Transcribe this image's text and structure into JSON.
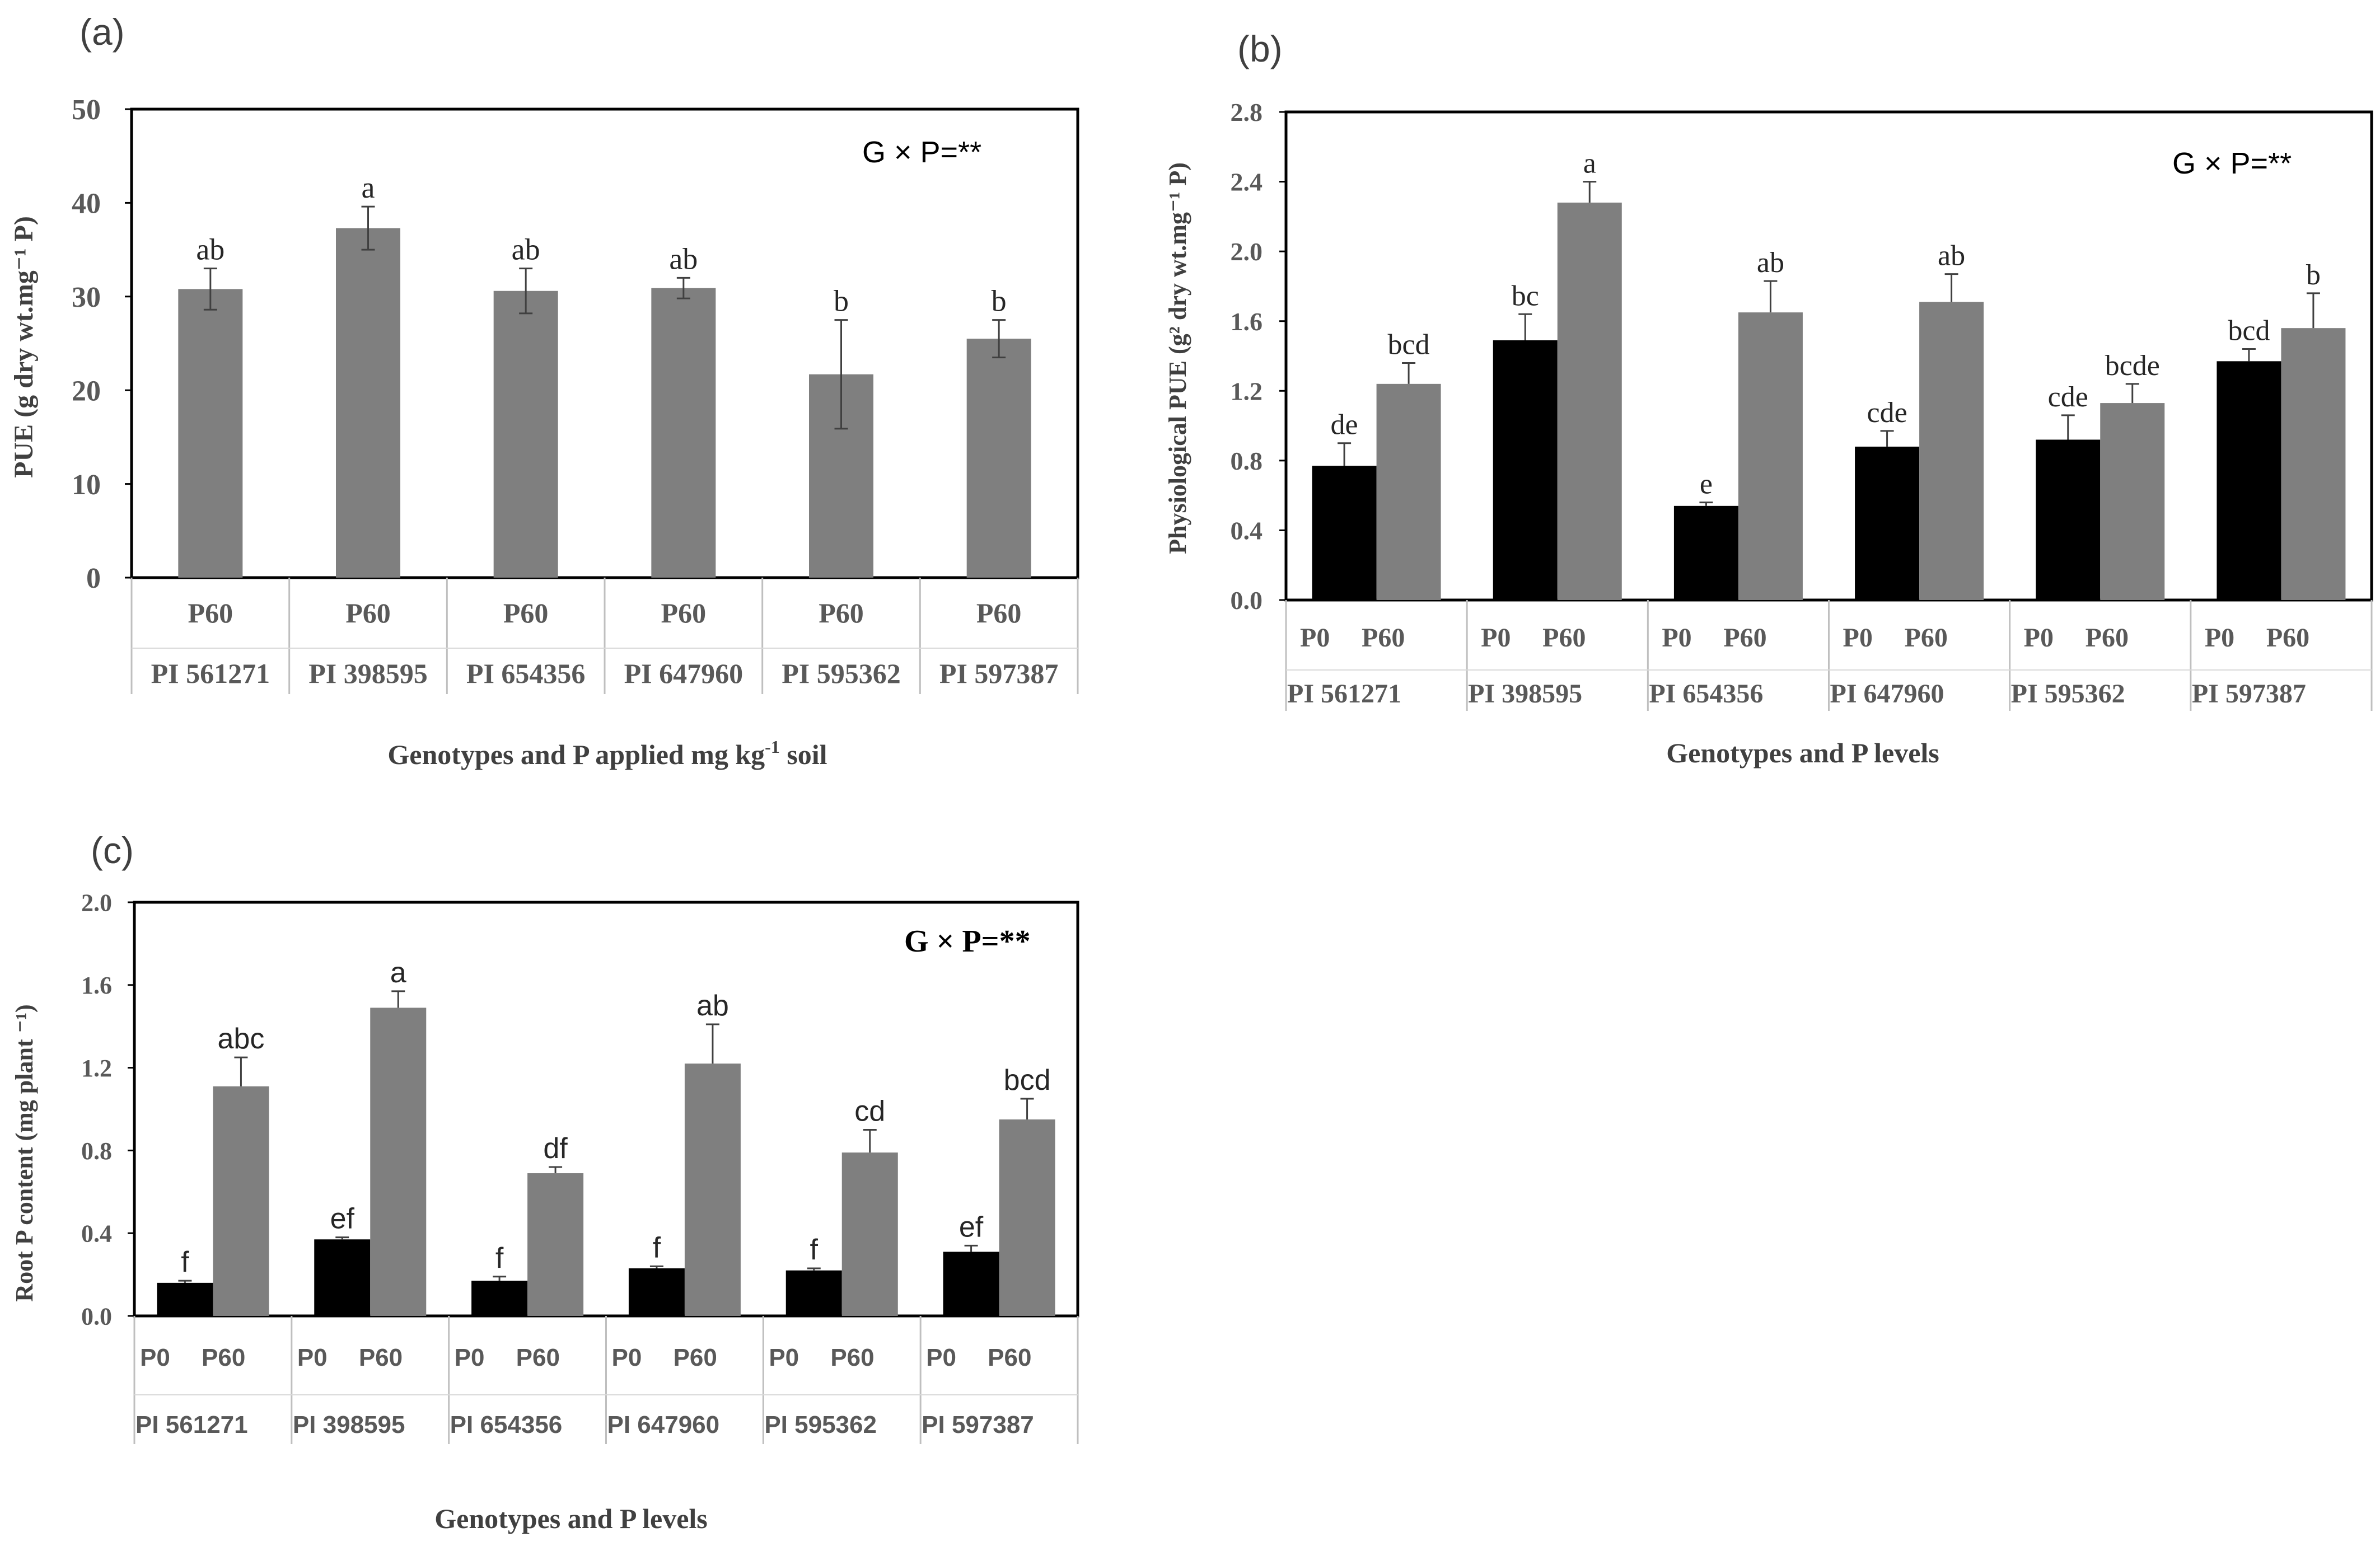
{
  "chart_data": [
    {
      "panel": "(a)",
      "type": "bar",
      "annotation": "G × P=**",
      "ylabel": "PUE (g dry wt.mg⁻¹ P)",
      "xlabel_main": "Genotypes and P applied  mg kg",
      "xlabel_sup": "-1",
      "xlabel_tail": " soil",
      "ylim": [
        0,
        50
      ],
      "yticks": [
        "0",
        "10",
        "20",
        "30",
        "40",
        "50"
      ],
      "genotypes": [
        "PI 561271",
        "PI 398595",
        "PI 654356",
        "PI 647960",
        "PI 595362",
        "PI 597387"
      ],
      "levels": [
        "P60"
      ],
      "colors": [
        "#7f7f7f"
      ],
      "series": [
        {
          "name": "P60",
          "values": [
            30.8,
            37.3,
            30.6,
            30.9,
            21.7,
            25.5
          ],
          "errors": [
            2.2,
            2.3,
            2.4,
            1.1,
            5.8,
            2.0
          ],
          "letters": [
            "ab",
            "a",
            "ab",
            "ab",
            "b",
            "b"
          ]
        }
      ]
    },
    {
      "panel": "(b)",
      "type": "bar",
      "annotation": "G × P=**",
      "ylabel": "Physiological PUE (g² dry wt.mg⁻¹ P)",
      "xlabel": "Genotypes and P levels",
      "ylim": [
        0,
        2.8
      ],
      "yticks": [
        "0.0",
        "0.4",
        "0.8",
        "1.2",
        "1.6",
        "2.0",
        "2.4",
        "2.8"
      ],
      "genotypes": [
        "PI 561271",
        "PI 398595",
        "PI 654356",
        "PI 647960",
        "PI 595362",
        "PI 597387"
      ],
      "levels": [
        "P0",
        "P60"
      ],
      "colors": [
        "#000000",
        "#7f7f7f"
      ],
      "series": [
        {
          "name": "P0",
          "values": [
            0.77,
            1.49,
            0.54,
            0.88,
            0.92,
            1.37
          ],
          "errors": [
            0.13,
            0.15,
            0.02,
            0.09,
            0.14,
            0.07
          ],
          "letters": [
            "de",
            "bc",
            "e",
            "cde",
            "cde",
            "bcd"
          ]
        },
        {
          "name": "P60",
          "values": [
            1.24,
            2.28,
            1.65,
            1.71,
            1.13,
            1.56
          ],
          "errors": [
            0.12,
            0.12,
            0.18,
            0.16,
            0.11,
            0.2
          ],
          "letters": [
            "bcd",
            "a",
            "ab",
            "ab",
            "bcde",
            "b"
          ]
        }
      ]
    },
    {
      "panel": "(c)",
      "type": "bar",
      "annotation": "G × P=**",
      "ylabel": "Root P content (mg plant ⁻¹)",
      "xlabel": "Genotypes and P levels",
      "ylim": [
        0,
        2.0
      ],
      "yticks": [
        "0.0",
        "0.4",
        "0.8",
        "1.2",
        "1.6",
        "2.0"
      ],
      "genotypes": [
        "PI 561271",
        "PI 398595",
        "PI 654356",
        "PI 647960",
        "PI 595362",
        "PI 597387"
      ],
      "levels": [
        "P0",
        "P60"
      ],
      "colors": [
        "#000000",
        "#7f7f7f"
      ],
      "series": [
        {
          "name": "P0",
          "values": [
            0.16,
            0.37,
            0.17,
            0.23,
            0.22,
            0.31
          ],
          "errors": [
            0.01,
            0.01,
            0.02,
            0.01,
            0.01,
            0.03
          ],
          "letters": [
            "f",
            "ef",
            "f",
            "f",
            "f",
            "ef"
          ]
        },
        {
          "name": "P60",
          "values": [
            1.11,
            1.49,
            0.69,
            1.22,
            0.79,
            0.95
          ],
          "errors": [
            0.14,
            0.08,
            0.03,
            0.19,
            0.11,
            0.1
          ],
          "letters": [
            "abc",
            "a",
            "df",
            "ab",
            "cd",
            "bcd"
          ]
        }
      ]
    }
  ]
}
